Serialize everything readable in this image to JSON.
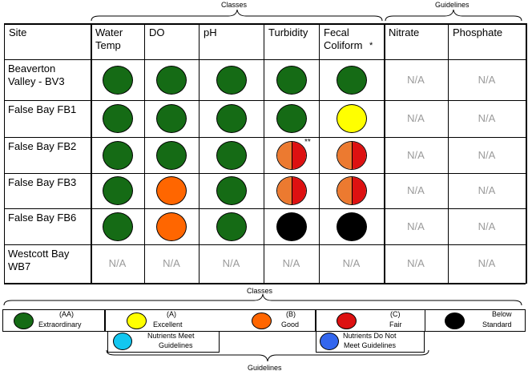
{
  "top_labels": {
    "classes": "Classes",
    "guidelines": "Guidelines"
  },
  "columns": [
    "Site",
    "Water Temp",
    "DO",
    "pH",
    "Turbidity",
    "Fecal Coliform",
    "Nitrate",
    "Phosphate"
  ],
  "fecal_marker": "*",
  "turbidity_marker": "**",
  "rows": [
    {
      "site": "Beaverton Valley - BV3",
      "classes": [
        "green",
        "green",
        "green",
        "green",
        "green"
      ],
      "guidelines": [
        "N/A",
        "N/A"
      ]
    },
    {
      "site": "False Bay FB1",
      "classes": [
        "green",
        "green",
        "green",
        "green",
        "yellow"
      ],
      "guidelines": [
        "N/A",
        "N/A"
      ]
    },
    {
      "site": "False Bay FB2",
      "classes": [
        "green",
        "green",
        "green",
        "orange-red",
        "orange-red"
      ],
      "guidelines": [
        "N/A",
        "N/A"
      ]
    },
    {
      "site": "False Bay FB3",
      "classes": [
        "green",
        "orange",
        "green",
        "orange-red",
        "orange-red"
      ],
      "guidelines": [
        "N/A",
        "N/A"
      ]
    },
    {
      "site": "False Bay FB6",
      "classes": [
        "green",
        "orange",
        "green",
        "black",
        "black"
      ],
      "guidelines": [
        "N/A",
        "N/A"
      ]
    },
    {
      "site": "Westcott Bay WB7",
      "classes": [
        "N/A",
        "N/A",
        "N/A",
        "N/A",
        "N/A"
      ],
      "guidelines": [
        "N/A",
        "N/A"
      ]
    }
  ],
  "legend": {
    "classes_label": "Classes",
    "guidelines_label": "Guidelines",
    "aa_code": "(AA)",
    "aa_text": "Extraordinary",
    "a_code": "(A)",
    "a_text": "Excellent",
    "b_code": "(B)",
    "b_text": "Good",
    "c_code": "(C)",
    "c_text": "Fair",
    "below_line1": "Below",
    "below_line2": "Standard",
    "meet_line1": "Nutrients Meet",
    "meet_line2": "Guidelines",
    "notmeet_line1": "Nutrients Do Not",
    "notmeet_line2": "Meet Guidelines"
  },
  "colors": {
    "green": "#156b15",
    "yellow": "#ffff00",
    "orange": "#ff6600",
    "orange_half": "#ec7a30",
    "red": "#dd1111",
    "black": "#000000",
    "cyan": "#13c7f0",
    "blue": "#3366ee"
  }
}
